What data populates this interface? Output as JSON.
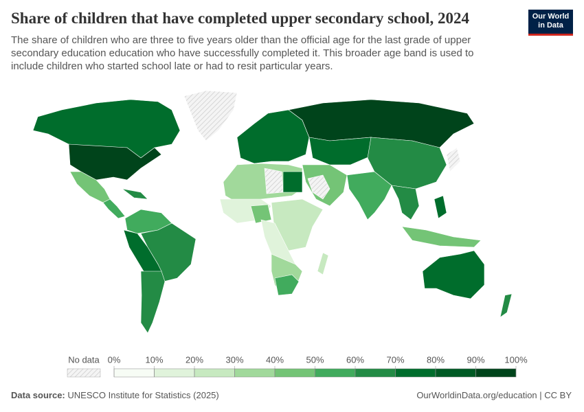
{
  "header": {
    "title": "Share of children that have completed upper secondary school, 2024",
    "subtitle": "The share of children who are three to five years older than the official age for the last grade of upper secondary education education who have successfully completed it. This broader age band is used to include children who started school late or had to resit particular years.",
    "logo": [
      "Our World",
      "in Data"
    ]
  },
  "legend": {
    "no_data_label": "No data",
    "ticks": [
      {
        "value": 0,
        "label": "0%"
      },
      {
        "value": 10,
        "label": "10%"
      },
      {
        "value": 20,
        "label": "20%"
      },
      {
        "value": 30,
        "label": "30%"
      },
      {
        "value": 40,
        "label": "40%"
      },
      {
        "value": 50,
        "label": "50%"
      },
      {
        "value": 60,
        "label": "60%"
      },
      {
        "value": 70,
        "label": "70%"
      },
      {
        "value": 80,
        "label": "80%"
      },
      {
        "value": 90,
        "label": "90%"
      },
      {
        "value": 100,
        "label": "100%"
      }
    ],
    "colors": [
      "#f7fcf5",
      "#e0f3db",
      "#c7e9c0",
      "#a1d99b",
      "#74c476",
      "#41ab5d",
      "#238b45",
      "#006d2c",
      "#005a24",
      "#00441b"
    ]
  },
  "footer": {
    "source_label": "Data source:",
    "source": "UNESCO Institute for Statistics (2025)",
    "url": "OurWorldinData.org/education | CC BY"
  }
}
